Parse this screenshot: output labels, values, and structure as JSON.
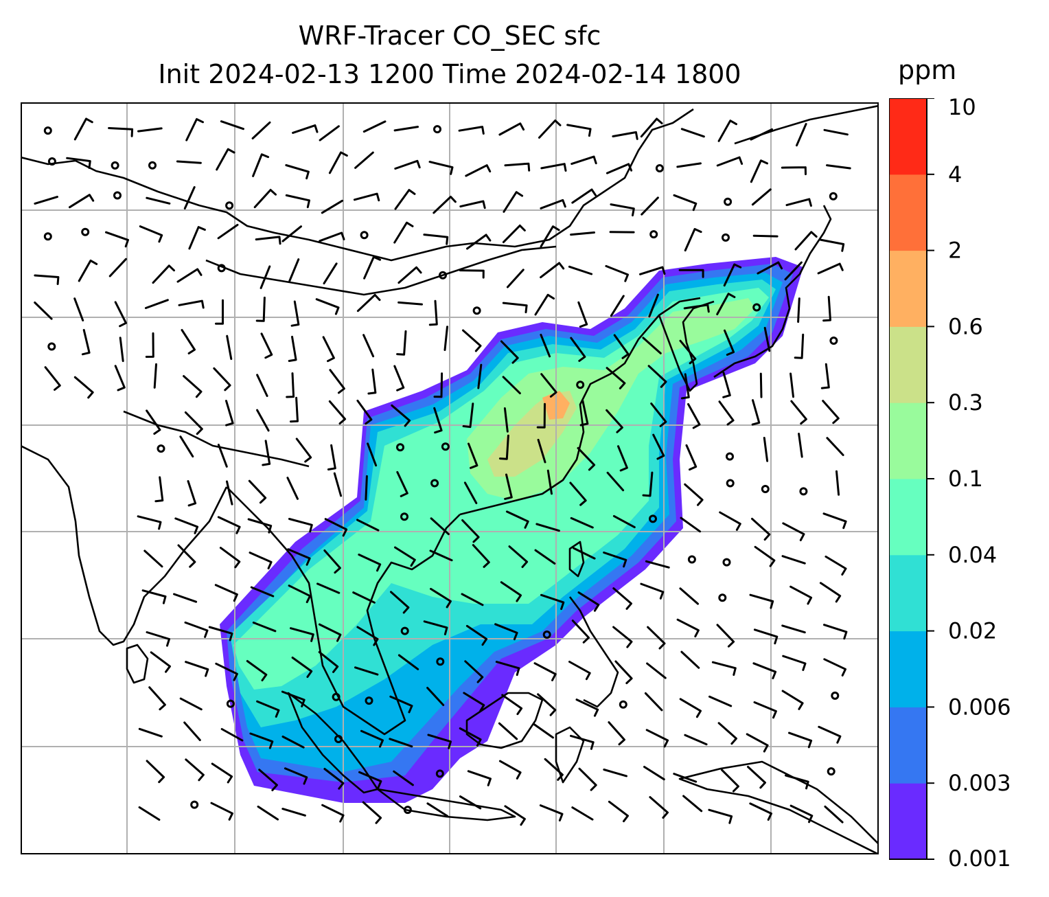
{
  "title": {
    "line1": "WRF-Tracer CO_SEC sfc",
    "line2": "Init 2024-02-13 1200 Time 2024-02-14 1800"
  },
  "colorbar": {
    "unit": "ppm",
    "levels": [
      "0.001",
      "0.003",
      "0.006",
      "0.02",
      "0.04",
      "0.1",
      "0.3",
      "0.6",
      "2",
      "4",
      "10"
    ],
    "colors": [
      "#6a2bff",
      "#3577f2",
      "#00b1ea",
      "#30e0d4",
      "#66ffbf",
      "#99fb9c",
      "#cbe189",
      "#ffb061",
      "#ff7039",
      "#ff2a17"
    ]
  },
  "map": {
    "field": "CO_SEC surface concentration",
    "wind_symbol": "wind barbs",
    "calm_symbol": "open circle",
    "coastline_color": "#000000",
    "grid_color": "#b0b0b0"
  }
}
